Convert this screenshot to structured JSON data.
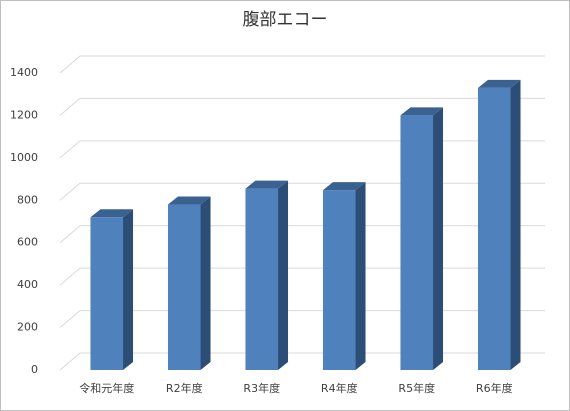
{
  "chart_data": {
    "type": "bar3d",
    "title": "腹部エコー",
    "categories": [
      "令和元年度",
      "R2年度",
      "R3年度",
      "R4年度",
      "R5年度",
      "R6年度"
    ],
    "values": [
      720,
      780,
      855,
      848,
      1200,
      1330
    ],
    "color": "#4f81bd",
    "ylim": [
      0,
      1400
    ],
    "yticks": [
      0,
      200,
      400,
      600,
      800,
      1000,
      1200,
      1400
    ],
    "grid": true
  }
}
